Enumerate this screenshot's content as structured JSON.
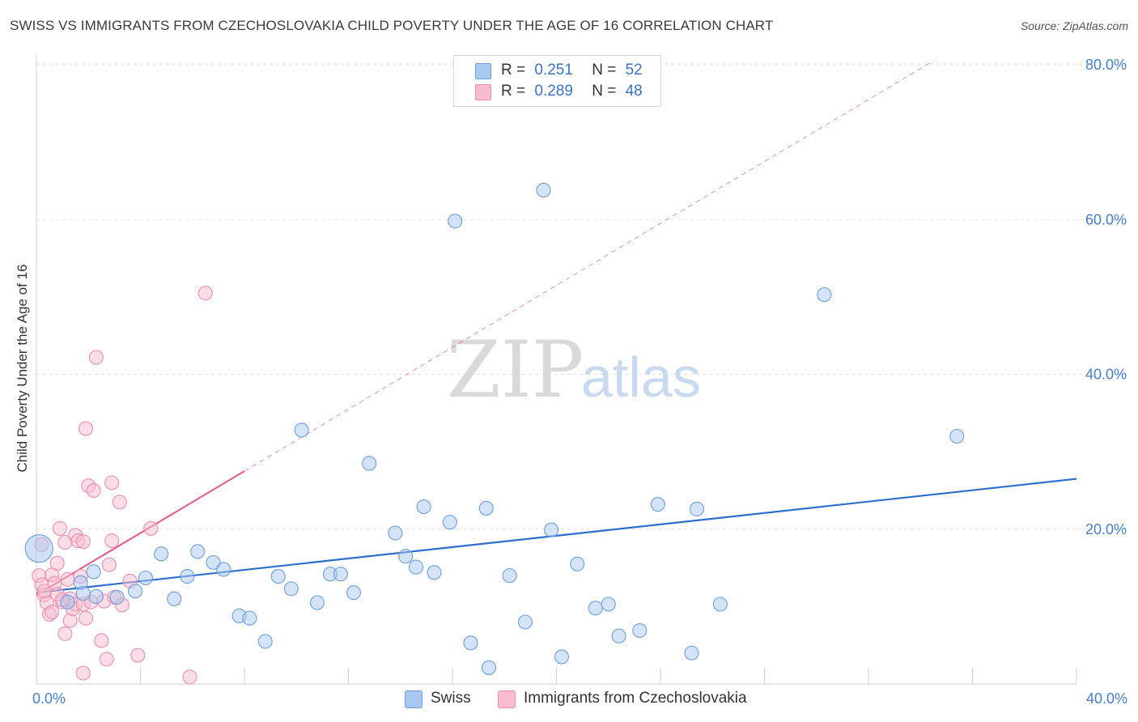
{
  "title": "SWISS VS IMMIGRANTS FROM CZECHOSLOVAKIA CHILD POVERTY UNDER THE AGE OF 16 CORRELATION CHART",
  "source": "Source: ZipAtlas.com",
  "watermark": {
    "zip": "ZIP",
    "atlas": "atlas"
  },
  "legend": {
    "rows": [
      {
        "r_label": "R =",
        "r_value": "0.251",
        "n_label": "N =",
        "n_value": "52"
      },
      {
        "r_label": "R =",
        "r_value": "0.289",
        "n_label": "N =",
        "n_value": "48"
      }
    ]
  },
  "bottom_legend": {
    "swiss": "Swiss",
    "czech": "Immigrants from Czechoslovakia"
  },
  "colors": {
    "swiss_fill": "#a9c8f0",
    "swiss_stroke": "#6d9fdc",
    "swiss_line": "#2f6fcc",
    "czech_fill": "#f7bcd0",
    "czech_stroke": "#ec8fb0",
    "czech_line": "#e0648f",
    "tick_text": "#4a7fc9",
    "grid": "#e2e2e2"
  },
  "chart_data": {
    "type": "scatter",
    "xlabel": "",
    "ylabel": "Child Poverty Under the Age of 16",
    "xlim": [
      0,
      40
    ],
    "ylim": [
      0,
      80
    ],
    "x_tick_labels": [
      {
        "value": 0,
        "label": "0.0%"
      },
      {
        "value": 40,
        "label": "40.0%"
      }
    ],
    "x_tick_marks": [
      0,
      4,
      8,
      12,
      16,
      20,
      24,
      28,
      32,
      36,
      40
    ],
    "y_ticks": [
      {
        "value": 20,
        "label": "20.0%"
      },
      {
        "value": 40,
        "label": "40.0%"
      },
      {
        "value": 60,
        "label": "60.0%"
      },
      {
        "value": 80,
        "label": "80.0%"
      }
    ],
    "grid": true,
    "legend_position": "top-center",
    "series": [
      {
        "name": "Swiss",
        "points": [
          [
            0.1,
            17.5
          ],
          [
            1.7,
            13.1
          ],
          [
            1.8,
            11.7
          ],
          [
            2.2,
            14.5
          ],
          [
            2.3,
            11.3
          ],
          [
            3.8,
            12.0
          ],
          [
            4.2,
            13.7
          ],
          [
            4.8,
            16.8
          ],
          [
            5.3,
            11.0
          ],
          [
            5.8,
            13.9
          ],
          [
            6.2,
            17.1
          ],
          [
            6.8,
            15.7
          ],
          [
            7.2,
            14.8
          ],
          [
            7.8,
            8.8
          ],
          [
            8.2,
            8.5
          ],
          [
            8.8,
            5.5
          ],
          [
            9.3,
            13.9
          ],
          [
            9.8,
            12.3
          ],
          [
            10.2,
            32.8
          ],
          [
            10.8,
            10.5
          ],
          [
            11.3,
            14.2
          ],
          [
            11.7,
            14.2
          ],
          [
            12.2,
            11.8
          ],
          [
            12.8,
            28.5
          ],
          [
            13.8,
            19.5
          ],
          [
            14.2,
            16.5
          ],
          [
            14.6,
            15.1
          ],
          [
            14.9,
            22.9
          ],
          [
            15.3,
            14.4
          ],
          [
            15.9,
            20.9
          ],
          [
            16.1,
            59.8
          ],
          [
            16.7,
            5.3
          ],
          [
            17.3,
            22.7
          ],
          [
            17.4,
            2.1
          ],
          [
            18.2,
            14.0
          ],
          [
            18.8,
            8.0
          ],
          [
            19.5,
            63.8
          ],
          [
            19.8,
            19.9
          ],
          [
            20.2,
            3.5
          ],
          [
            20.8,
            15.5
          ],
          [
            21.5,
            9.8
          ],
          [
            22.0,
            10.3
          ],
          [
            22.4,
            6.2
          ],
          [
            23.2,
            6.9
          ],
          [
            23.9,
            23.2
          ],
          [
            25.2,
            4.0
          ],
          [
            25.4,
            22.6
          ],
          [
            26.3,
            10.3
          ],
          [
            30.3,
            50.3
          ],
          [
            35.4,
            32.0
          ],
          [
            3.1,
            11.2
          ],
          [
            1.2,
            10.6
          ]
        ]
      },
      {
        "name": "Immigrants from Czechoslovakia",
        "points": [
          [
            0.1,
            14.0
          ],
          [
            0.2,
            12.8
          ],
          [
            0.3,
            11.5
          ],
          [
            0.4,
            10.5
          ],
          [
            0.5,
            9.0
          ],
          [
            0.6,
            14.1
          ],
          [
            0.7,
            13.0
          ],
          [
            0.8,
            15.6
          ],
          [
            0.8,
            11.6
          ],
          [
            0.9,
            20.1
          ],
          [
            1.0,
            10.6
          ],
          [
            1.1,
            18.3
          ],
          [
            1.1,
            6.5
          ],
          [
            1.2,
            13.5
          ],
          [
            1.3,
            11.0
          ],
          [
            1.3,
            8.2
          ],
          [
            1.4,
            9.7
          ],
          [
            1.5,
            10.3
          ],
          [
            1.5,
            19.2
          ],
          [
            1.6,
            18.5
          ],
          [
            1.7,
            13.9
          ],
          [
            1.8,
            18.4
          ],
          [
            1.9,
            8.5
          ],
          [
            1.8,
            1.4
          ],
          [
            1.9,
            33.0
          ],
          [
            1.8,
            10.3
          ],
          [
            2.0,
            25.6
          ],
          [
            2.2,
            25.0
          ],
          [
            2.1,
            10.6
          ],
          [
            2.3,
            42.2
          ],
          [
            2.5,
            5.6
          ],
          [
            2.6,
            10.7
          ],
          [
            2.7,
            3.2
          ],
          [
            2.8,
            15.4
          ],
          [
            2.9,
            18.5
          ],
          [
            2.9,
            26.0
          ],
          [
            3.0,
            11.2
          ],
          [
            3.2,
            23.5
          ],
          [
            3.3,
            10.2
          ],
          [
            3.6,
            13.3
          ],
          [
            3.9,
            3.7
          ],
          [
            4.4,
            20.1
          ],
          [
            5.9,
            0.9
          ],
          [
            6.5,
            50.5
          ],
          [
            0.6,
            9.3
          ],
          [
            0.3,
            12.0
          ],
          [
            1.0,
            10.9
          ],
          [
            0.2,
            18.0
          ]
        ]
      }
    ],
    "trend_lines": [
      {
        "series": "Swiss",
        "x": [
          0,
          40
        ],
        "y": [
          11.8,
          26.5
        ],
        "style": "solid"
      },
      {
        "series": "Immigrants from Czechoslovakia",
        "x": [
          0,
          8
        ],
        "y": [
          11.5,
          27.5
        ],
        "style": "solid"
      },
      {
        "series": "Immigrants from Czechoslovakia",
        "x": [
          8,
          34.5
        ],
        "y": [
          27.5,
          80.5
        ],
        "style": "dashed"
      }
    ]
  }
}
